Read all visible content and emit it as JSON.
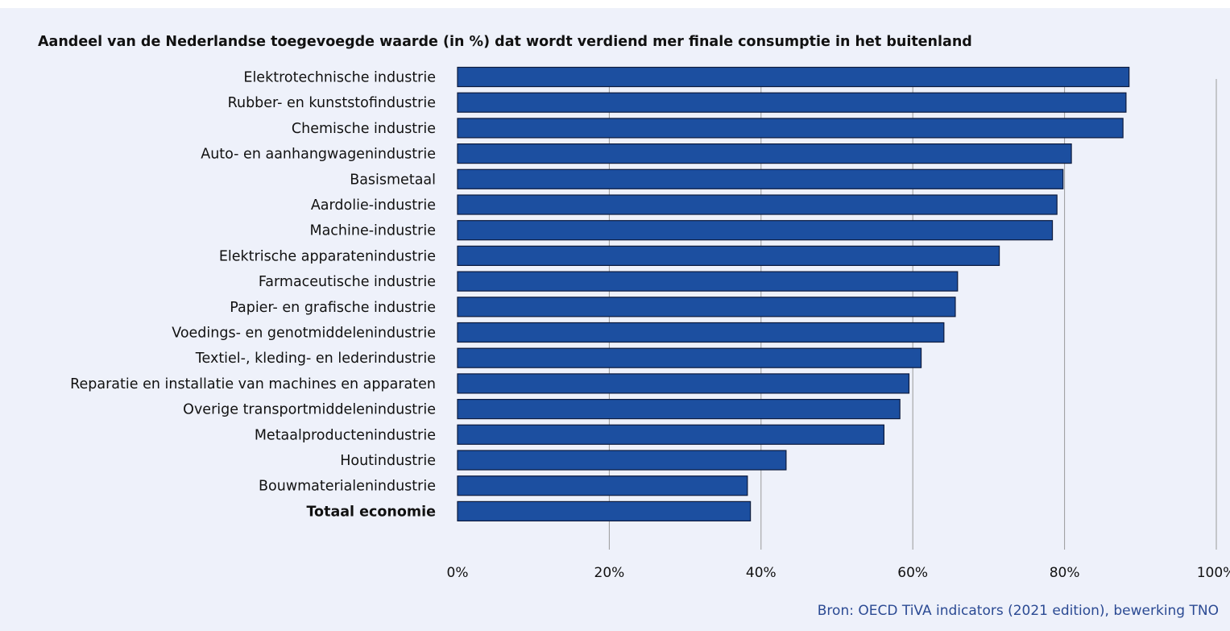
{
  "title": "Aandeel van de Nederlandse toegevoegde waarde (in %) dat wordt verdiend mer finale consumptie in het buitenland",
  "source": "Bron: OECD TiVA indicators (2021 edition), bewerking TNO",
  "colors": {
    "background": "#eef1fa",
    "bar": "#1c4fa0",
    "bar_border": "#0d1b3e",
    "grid": "#9a9a9a",
    "text": "#111111",
    "source": "#2b4a93"
  },
  "chart_data": {
    "type": "bar",
    "orientation": "horizontal",
    "title": "Aandeel van de Nederlandse toegevoegde waarde (in %) dat wordt verdiend mer finale consumptie in het buitenland",
    "xlim": [
      0,
      100
    ],
    "xticks": [
      0,
      20,
      40,
      60,
      80,
      100
    ],
    "xtick_labels": [
      "0%",
      "20%",
      "40%",
      "60%",
      "80%",
      "100%"
    ],
    "grid": true,
    "categories": [
      "Elektrotechnische industrie",
      "Rubber- en kunststofindustrie",
      "Chemische industrie",
      "Auto- en aanhangwagenindustrie",
      "Basismetaal",
      "Aardolie-industrie",
      "Machine-industrie",
      "Elektrische apparatenindustrie",
      "Farmaceutische industrie",
      "Papier- en grafische industrie",
      "Voedings- en genotmiddelenindustrie",
      "Textiel-, kleding- en lederindustrie",
      "Reparatie en installatie van machines en apparaten",
      "Overige transportmiddelenindustrie",
      "Metaalproductenindustrie",
      "Houtindustrie",
      "Bouwmaterialenindustrie",
      "Totaal economie"
    ],
    "values": [
      88.5,
      88.1,
      87.7,
      80.9,
      79.8,
      79.0,
      78.4,
      71.4,
      65.9,
      65.6,
      64.1,
      61.1,
      59.5,
      58.3,
      56.2,
      43.3,
      38.2,
      38.6
    ],
    "bold_categories": [
      "Totaal economie"
    ]
  }
}
